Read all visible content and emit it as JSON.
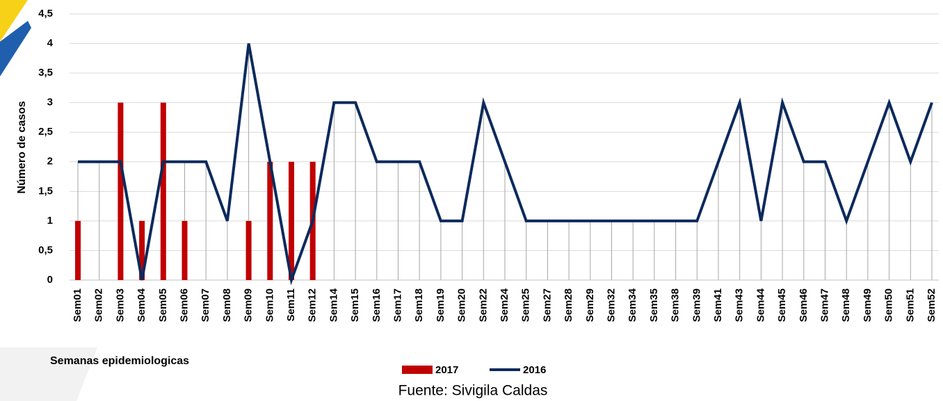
{
  "chart_data": {
    "type": "bar-line",
    "ylabel": "Número de casos",
    "xlabel": "Semanas epidemiologicas",
    "source": "Fuente: Sivigila Caldas",
    "categories": [
      "Sem01",
      "Sem02",
      "Sem03",
      "Sem04",
      "Sem05",
      "Sem06",
      "Sem07",
      "Sem08",
      "Sem09",
      "Sem10",
      "Sem11",
      "Sem12",
      "Sem14",
      "Sem15",
      "Sem16",
      "Sem17",
      "Sem18",
      "Sem19",
      "Sem20",
      "Sem22",
      "Sem24",
      "Sem25",
      "Sem27",
      "Sem28",
      "Sem29",
      "Sem32",
      "Sem34",
      "Sem35",
      "Sem38",
      "Sem39",
      "Sem41",
      "Sem43",
      "Sem44",
      "Sem45",
      "Sem46",
      "Sem47",
      "Sem48",
      "Sem49",
      "Sem50",
      "Sem51",
      "Sem52"
    ],
    "series": [
      {
        "name": "2017",
        "type": "bar",
        "color": "#c00000",
        "values": [
          1,
          0,
          3,
          1,
          3,
          1,
          0,
          0,
          1,
          2,
          2,
          2,
          0,
          0,
          0,
          0,
          0,
          0,
          0,
          0,
          0,
          0,
          0,
          0,
          0,
          0,
          0,
          0,
          0,
          0,
          0,
          0,
          0,
          0,
          0,
          0,
          0,
          0,
          0,
          0,
          0
        ]
      },
      {
        "name": "2016",
        "type": "line",
        "color": "#0c2a5c",
        "values": [
          2,
          2,
          2,
          0,
          2,
          2,
          2,
          1,
          4,
          2,
          0,
          1,
          3,
          3,
          2,
          2,
          2,
          1,
          1,
          3,
          2,
          1,
          1,
          1,
          1,
          1,
          1,
          1,
          1,
          1,
          2,
          3,
          1,
          3,
          2,
          2,
          1,
          2,
          3,
          2,
          3
        ]
      }
    ],
    "ylim": [
      0,
      4.5
    ],
    "yticks": [
      0,
      {
        "value": 0.5,
        "label": "0,5"
      },
      1,
      {
        "value": 1.5,
        "label": "1,5"
      },
      2,
      {
        "value": 2.5,
        "label": "2,5"
      },
      3,
      {
        "value": 3.5,
        "label": "3,5"
      },
      4,
      {
        "value": 4.5,
        "label": "4,5"
      }
    ],
    "grid": true
  }
}
